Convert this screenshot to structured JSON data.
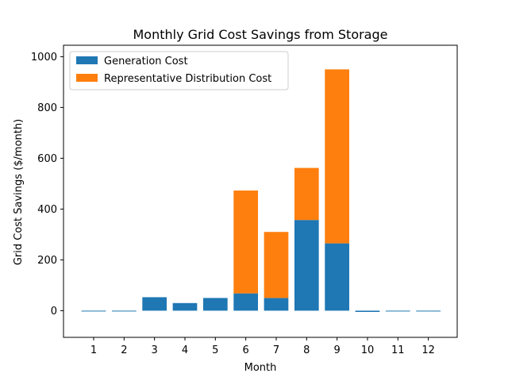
{
  "chart_data": {
    "type": "bar",
    "stacked": true,
    "title": "Monthly Grid Cost Savings from Storage",
    "xlabel": "Month",
    "ylabel": "Grid Cost Savings ($/month)",
    "categories": [
      "1",
      "2",
      "3",
      "4",
      "5",
      "6",
      "7",
      "8",
      "9",
      "10",
      "11",
      "12"
    ],
    "series": [
      {
        "name": "Generation Cost",
        "color": "#1f77b4",
        "values": [
          -2,
          -2,
          53,
          30,
          50,
          68,
          50,
          357,
          265,
          -5,
          -2,
          -2
        ]
      },
      {
        "name": "Representative Distribution Cost",
        "color": "#ff7f0e",
        "values": [
          0,
          0,
          0,
          0,
          0,
          405,
          260,
          205,
          685,
          0,
          0,
          0
        ]
      }
    ],
    "ylim": [
      -105,
      1045
    ],
    "yticks": [
      0,
      200,
      400,
      600,
      800,
      1000
    ],
    "grid": false,
    "legend_position": "top-left"
  }
}
